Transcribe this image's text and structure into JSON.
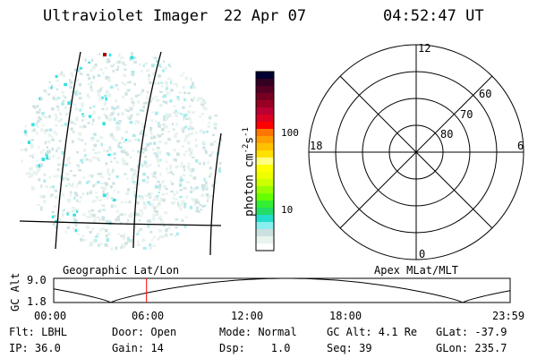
{
  "header": {
    "instrument": "Ultraviolet Imager",
    "date": "22 Apr 07",
    "time": "04:52:47 UT"
  },
  "colorbar": {
    "label": "photon cm",
    "label_exp1": "-2",
    "label_mid": "s",
    "label_exp2": "-1",
    "ticks": [
      "100",
      "10"
    ],
    "colors": [
      "#000033",
      "#330022",
      "#550022",
      "#770022",
      "#990022",
      "#bb0033",
      "#dd0022",
      "#ff0000",
      "#ff7700",
      "#ffa000",
      "#ffc000",
      "#ffe000",
      "#ffff80",
      "#ffff00",
      "#eeff00",
      "#ccff00",
      "#99ff00",
      "#66ff00",
      "#33ee33",
      "#22dd66",
      "#22ddcc",
      "#88eeee",
      "#cce0e0",
      "#e8f4ee",
      "#ffffff"
    ]
  },
  "polar": {
    "mlt_labels": [
      "12",
      "18",
      "6",
      "0"
    ],
    "lat_labels": [
      "60",
      "70",
      "80"
    ]
  },
  "labels": {
    "left_map": "Geographic Lat/Lon",
    "right_map": "Apex MLat/MLT"
  },
  "orbit": {
    "ylabel": "GC Alt",
    "ymax": "9.0",
    "ymin": "1.8",
    "xticks": [
      "00:00",
      "06:00",
      "12:00",
      "18:00",
      "23:59"
    ],
    "current_time_hours": 4.88,
    "marker_color": "#ff0000"
  },
  "status": {
    "row1": [
      "Flt: LBHL",
      "Door: Open",
      "Mode: Normal",
      "GC Alt: 4.1 Re",
      "GLat: -37.9"
    ],
    "row2": [
      "IP: 36.0",
      "Gain: 14",
      "Dsp:    1.0",
      "Seq: 39",
      "GLon: 235.7"
    ]
  }
}
